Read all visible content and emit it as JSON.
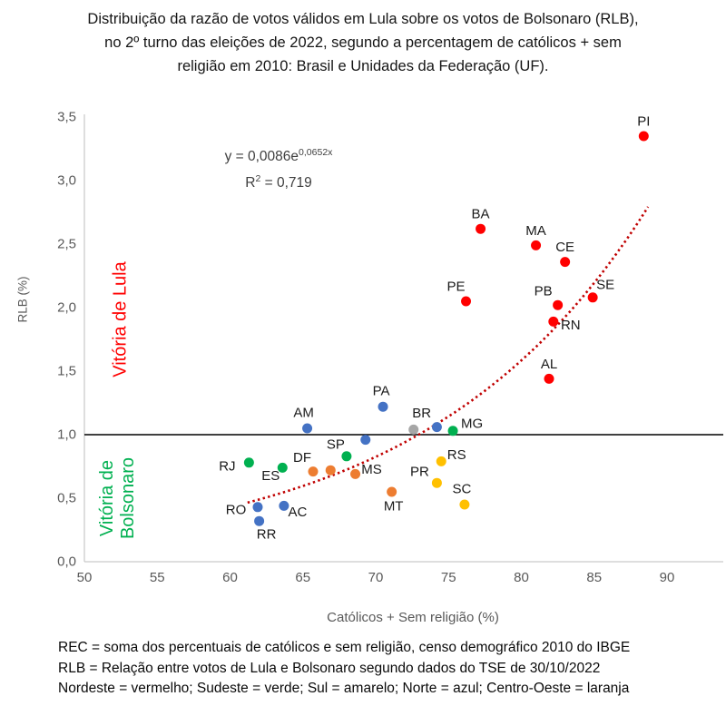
{
  "title_lines": [
    "Distribuição da razão de votos válidos em Lula sobre os votos de Bolsonaro (RLB),",
    "no 2º turno das eleições de 2022, segundo a percentagem de católicos + sem",
    "religião em 2010: Brasil e Unidades da Federação (UF)."
  ],
  "footer_lines": [
    "REC = soma dos percentuais de católicos e sem religião, censo demográfico 2010 do IBGE",
    "RLB = Relação entre votos de Lula e Bolsonaro segundo dados do TSE de 30/10/2022",
    "Nordeste = vermelho; Sudeste = verde; Sul = amarelo; Norte = azul; Centro-Oeste = laranja"
  ],
  "chart_data": {
    "type": "scatter",
    "xlabel": "Católicos + Sem religião (%)",
    "ylabel": "RLB (%)",
    "xlim": [
      50,
      94
    ],
    "ylim": [
      0,
      3.5
    ],
    "xticks": [
      "50",
      "55",
      "60",
      "65",
      "70",
      "75",
      "80",
      "85",
      "90"
    ],
    "xtick_values": [
      50,
      55,
      60,
      65,
      70,
      75,
      80,
      85,
      90
    ],
    "ytick_labels": [
      "0,0",
      "0,5",
      "1,0",
      "1,5",
      "2,0",
      "2,5",
      "3,0",
      "3,5"
    ],
    "ytick_values": [
      0,
      0.5,
      1,
      1.5,
      2,
      2.5,
      3,
      3.5
    ],
    "grid": false,
    "reference_line_y": 1.0,
    "equation": {
      "base": "y = 0,0086e",
      "exponent": "0,0652x"
    },
    "r_squared": {
      "base": "R",
      "sup": "2",
      "rest": " = 0,719"
    },
    "trend": {
      "type": "exponential",
      "a": 0.0086,
      "b": 0.0652,
      "x_start": 61.2,
      "x_end": 88.8,
      "color": "#C00000",
      "style": "dotted"
    },
    "annotations": {
      "victory_lula": {
        "text": "Vitória de Lula",
        "color": "#FF0000"
      },
      "victory_bolsonaro": {
        "line1": "Vitória de",
        "line2": "Bolsonaro",
        "color": "#00B050"
      }
    },
    "series": [
      {
        "name": "Nordeste",
        "color": "#FF0000",
        "points": [
          {
            "label": "PI",
            "x": 88.4,
            "y": 3.35,
            "label_offset": [
              0,
              -16
            ]
          },
          {
            "label": "BA",
            "x": 77.2,
            "y": 2.62,
            "label_offset": [
              0,
              -16
            ]
          },
          {
            "label": "MA",
            "x": 81.0,
            "y": 2.49,
            "label_offset": [
              0,
              -16
            ]
          },
          {
            "label": "CE",
            "x": 83.0,
            "y": 2.36,
            "label_offset": [
              0,
              -16
            ]
          },
          {
            "label": "PE",
            "x": 76.2,
            "y": 2.05,
            "label_offset": [
              -11,
              -16
            ]
          },
          {
            "label": "PB",
            "x": 82.5,
            "y": 2.02,
            "label_offset": [
              -16,
              -15
            ]
          },
          {
            "label": "SE",
            "x": 84.9,
            "y": 2.08,
            "label_offset": [
              14,
              -14
            ]
          },
          {
            "label": "RN",
            "x": 82.2,
            "y": 1.89,
            "label_offset": [
              19,
              4
            ]
          },
          {
            "label": "AL",
            "x": 81.9,
            "y": 1.44,
            "label_offset": [
              0,
              -16
            ]
          }
        ]
      },
      {
        "name": "Norte",
        "color": "#4472C4",
        "points": [
          {
            "label": "PA",
            "x": 70.5,
            "y": 1.22,
            "label_offset": [
              -2,
              -17
            ]
          },
          {
            "label": "AM",
            "x": 65.3,
            "y": 1.05,
            "label_offset": [
              -4,
              -17
            ]
          },
          {
            "label": "",
            "x": 74.2,
            "y": 1.06,
            "label_offset": [
              0,
              0
            ]
          },
          {
            "label": "",
            "x": 69.3,
            "y": 0.96,
            "label_offset": [
              0,
              0
            ]
          },
          {
            "label": "RO",
            "x": 61.9,
            "y": 0.43,
            "label_offset": [
              -24,
              3
            ]
          },
          {
            "label": "AC",
            "x": 63.7,
            "y": 0.44,
            "label_offset": [
              15,
              7
            ]
          },
          {
            "label": "RR",
            "x": 62.0,
            "y": 0.32,
            "label_offset": [
              8,
              15
            ]
          }
        ]
      },
      {
        "name": "Sudeste",
        "color": "#00B050",
        "points": [
          {
            "label": "MG",
            "x": 75.3,
            "y": 1.03,
            "label_offset": [
              21,
              -8
            ]
          },
          {
            "label": "SP",
            "x": 68.0,
            "y": 0.83,
            "label_offset": [
              -12,
              -13
            ]
          },
          {
            "label": "RJ",
            "x": 61.3,
            "y": 0.78,
            "label_offset": [
              -24,
              4
            ]
          },
          {
            "label": "ES",
            "x": 63.6,
            "y": 0.74,
            "label_offset": [
              -13,
              9
            ]
          }
        ]
      },
      {
        "name": "Sul",
        "color": "#FFC000",
        "points": [
          {
            "label": "RS",
            "x": 74.5,
            "y": 0.79,
            "label_offset": [
              17,
              -7
            ]
          },
          {
            "label": "PR",
            "x": 74.2,
            "y": 0.62,
            "label_offset": [
              -19,
              -12
            ]
          },
          {
            "label": "SC",
            "x": 76.1,
            "y": 0.45,
            "label_offset": [
              -3,
              -17
            ]
          }
        ]
      },
      {
        "name": "Centro-Oeste",
        "color": "#ED7D31",
        "points": [
          {
            "label": "DF",
            "x": 65.7,
            "y": 0.71,
            "label_offset": [
              -12,
              -15
            ]
          },
          {
            "label": "",
            "x": 66.9,
            "y": 0.72,
            "label_offset": [
              0,
              0
            ]
          },
          {
            "label": "MS",
            "x": 68.6,
            "y": 0.69,
            "label_offset": [
              18,
              -5
            ]
          },
          {
            "label": "MT",
            "x": 71.1,
            "y": 0.55,
            "label_offset": [
              2,
              16
            ]
          }
        ]
      },
      {
        "name": "Brasil",
        "color": "#A6A6A6",
        "points": [
          {
            "label": "BR",
            "x": 72.6,
            "y": 1.04,
            "label_offset": [
              9,
              -18
            ]
          }
        ]
      }
    ],
    "colors": {
      "axis_line": "#C9C9C9",
      "axis_text": "#595959",
      "point_label_text": "#1a1a1a",
      "reference_line": "#000000",
      "trend_line": "#C00000"
    }
  }
}
